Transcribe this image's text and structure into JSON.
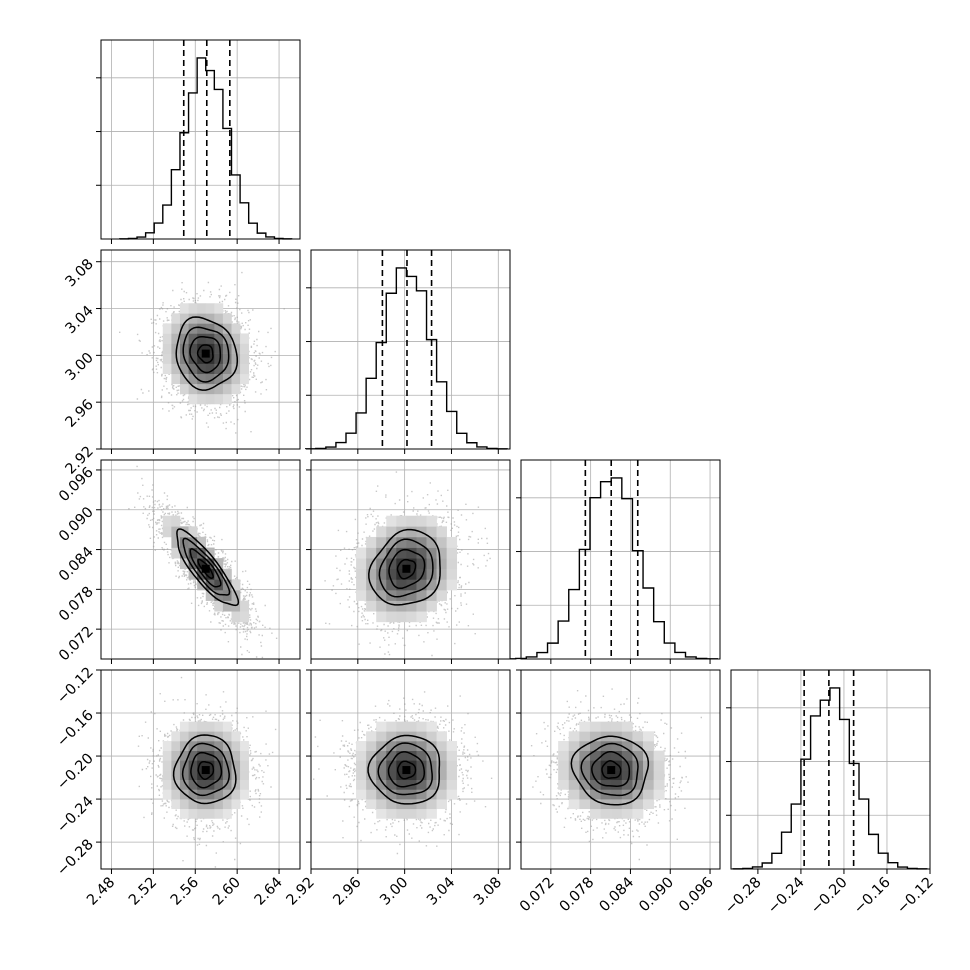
{
  "chart_data": {
    "type": "corner",
    "parameters": [
      {
        "range": [
          2.47,
          2.66
        ],
        "ticks": [
          "2.48",
          "2.52",
          "2.56",
          "2.60",
          "2.64"
        ],
        "tick_values": [
          2.48,
          2.52,
          2.56,
          2.6,
          2.64
        ],
        "mean": 2.57,
        "sd": 0.0205,
        "quantiles": [
          2.549,
          2.571,
          2.593
        ]
      },
      {
        "range": [
          2.92,
          3.09
        ],
        "ticks": [
          "2.92",
          "2.96",
          "3.00",
          "3.04",
          "3.08"
        ],
        "tick_values": [
          2.92,
          2.96,
          3.0,
          3.04,
          3.08
        ],
        "mean": 3.0015,
        "sd": 0.0215,
        "quantiles": [
          2.981,
          3.002,
          3.023
        ]
      },
      {
        "range": [
          0.0675,
          0.0975
        ],
        "ticks": [
          "0.072",
          "0.078",
          "0.084",
          "0.090",
          "0.096"
        ],
        "tick_values": [
          0.072,
          0.078,
          0.084,
          0.09,
          0.096
        ],
        "mean": 0.0811,
        "sd": 0.004,
        "quantiles": [
          0.0772,
          0.0811,
          0.0851
        ]
      },
      {
        "range": [
          -0.305,
          -0.12
        ],
        "ticks": [
          "−0.28",
          "−0.24",
          "−0.20",
          "−0.16",
          "−0.12"
        ],
        "tick_values": [
          -0.28,
          -0.24,
          -0.2,
          -0.16,
          -0.12
        ],
        "mean": -0.213,
        "sd": 0.0225,
        "quantiles": [
          -0.237,
          -0.214,
          -0.191
        ]
      }
    ],
    "y_ticks": [
      [
        "3.08",
        "3.04",
        "3.00",
        "2.96",
        "2.92"
      ],
      [
        "0.096",
        "0.090",
        "0.084",
        "0.078",
        "0.072"
      ],
      [
        "−0.12",
        "−0.16",
        "−0.20",
        "−0.24",
        "−0.28"
      ]
    ],
    "correlations": [
      {
        "pair": [
          1,
          0
        ],
        "rho": -0.1
      },
      {
        "pair": [
          2,
          0
        ],
        "rho": -0.85
      },
      {
        "pair": [
          2,
          1
        ],
        "rho": 0.15
      },
      {
        "pair": [
          3,
          0
        ],
        "rho": 0.0
      },
      {
        "pair": [
          3,
          1
        ],
        "rho": 0.0
      },
      {
        "pair": [
          3,
          2
        ],
        "rho": -0.05
      }
    ],
    "contour_levels_sigma": [
      0.5,
      1.0,
      1.5,
      2.0
    ],
    "histogram_bins": 20,
    "grid": true,
    "colors": {
      "line": "#000000",
      "scatter": "#9a9a9a",
      "grid": "#b0b0b0"
    }
  }
}
